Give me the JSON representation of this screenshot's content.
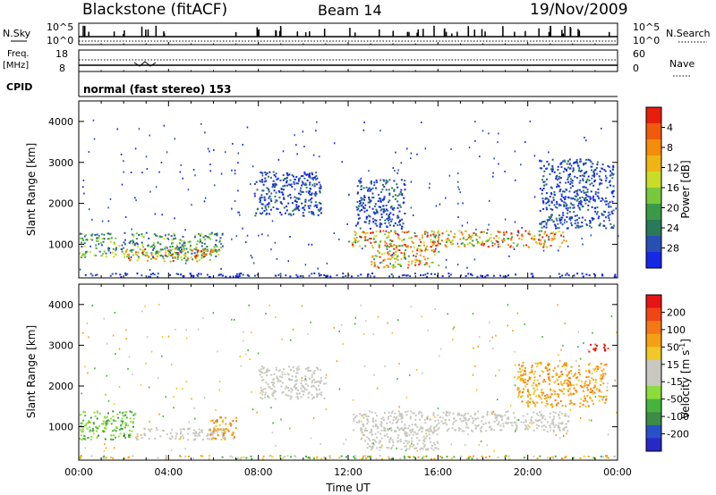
{
  "header": {
    "station": "Blackstone (fitACF)",
    "beam": "Beam 14",
    "date": "19/Nov/2009"
  },
  "status_panels": {
    "nsky_label": "N.Sky",
    "nsky_ticks": [
      "10^5",
      "10^0"
    ],
    "nsearch_label": "N.Search",
    "nsearch_ticks": [
      "10^5",
      "10^0"
    ],
    "freq_label": "Freq.",
    "freq_unit": "[MHz]",
    "freq_ticks": [
      "18",
      "8"
    ],
    "nave_label": "Nave",
    "nave_ticks": [
      "60",
      "0"
    ],
    "cpid_label": "CPID",
    "cpid_text": "normal (fast stereo) 153"
  },
  "chart_data": [
    {
      "type": "heatmap",
      "name": "power",
      "ylabel": "Slant Range [km]",
      "ylim": [
        180,
        4500
      ],
      "yticks": [
        "1000",
        "2000",
        "3000",
        "4000"
      ],
      "xlim": [
        "00:00",
        "24:00"
      ],
      "colorbar": {
        "label": "Power [dB]",
        "ticks": [
          "4",
          "8",
          "12",
          "16",
          "20",
          "24",
          "28"
        ],
        "colors": [
          "#1428e6",
          "#2850b4",
          "#2a7a5a",
          "#3c9a46",
          "#78c83c",
          "#c8dc28",
          "#f0b414",
          "#f58c0a",
          "#f05a0a",
          "#e61e0a"
        ]
      },
      "regions": [
        {
          "t0": 0.0,
          "t1": 6.4,
          "r0": 700,
          "r1": 1300,
          "level": "medium"
        },
        {
          "t0": 2.0,
          "t1": 6.0,
          "r0": 600,
          "r1": 900,
          "level": "high"
        },
        {
          "t0": 7.8,
          "t1": 10.8,
          "r0": 1700,
          "r1": 2800,
          "level": "low"
        },
        {
          "t0": 12.3,
          "t1": 14.5,
          "r0": 1400,
          "r1": 2600,
          "level": "low"
        },
        {
          "t0": 12.0,
          "t1": 21.7,
          "r0": 950,
          "r1": 1350,
          "level": "high"
        },
        {
          "t0": 13.0,
          "t1": 16.0,
          "r0": 450,
          "r1": 1000,
          "level": "high"
        },
        {
          "t0": 20.5,
          "t1": 23.8,
          "r0": 1400,
          "r1": 3100,
          "level": "low"
        }
      ]
    },
    {
      "type": "heatmap",
      "name": "velocity",
      "ylabel": "Slant Range [km]",
      "ylim": [
        180,
        4500
      ],
      "yticks": [
        "1000",
        "2000",
        "3000",
        "4000"
      ],
      "xlim": [
        "00:00",
        "24:00"
      ],
      "xlabel": "Time UT",
      "xticks": [
        "00:00",
        "04:00",
        "08:00",
        "12:00",
        "16:00",
        "20:00",
        "00:00"
      ],
      "colorbar": {
        "label": "Velocity [m s",
        "label_sup": "-1",
        "label_end": "]",
        "ticks": [
          "200",
          "100",
          "50",
          "15",
          "-15",
          "-50",
          "-100",
          "-200"
        ],
        "colors": [
          "#2828c8",
          "#2850c8",
          "#3c8c46",
          "#46b43c",
          "#8cdc3c",
          "#c8c8c0",
          "#c8c8c0",
          "#f0c828",
          "#f5a014",
          "#f57814",
          "#f04614",
          "#e61414"
        ]
      },
      "regions": [
        {
          "t0": 0.0,
          "t1": 2.5,
          "r0": 700,
          "r1": 1400,
          "level": "green"
        },
        {
          "t0": 2.5,
          "t1": 6.5,
          "r0": 700,
          "r1": 1000,
          "level": "grey"
        },
        {
          "t0": 5.8,
          "t1": 7.0,
          "r0": 700,
          "r1": 1250,
          "level": "orange"
        },
        {
          "t0": 8.0,
          "t1": 11.0,
          "r0": 1700,
          "r1": 2500,
          "level": "grey"
        },
        {
          "t0": 12.2,
          "t1": 21.8,
          "r0": 900,
          "r1": 1400,
          "level": "grey"
        },
        {
          "t0": 12.5,
          "t1": 16.0,
          "r0": 450,
          "r1": 1000,
          "level": "grey"
        },
        {
          "t0": 19.5,
          "t1": 23.5,
          "r0": 1500,
          "r1": 2600,
          "level": "orange"
        },
        {
          "t0": 22.6,
          "t1": 23.6,
          "r0": 2850,
          "r1": 3050,
          "level": "red"
        }
      ]
    }
  ]
}
